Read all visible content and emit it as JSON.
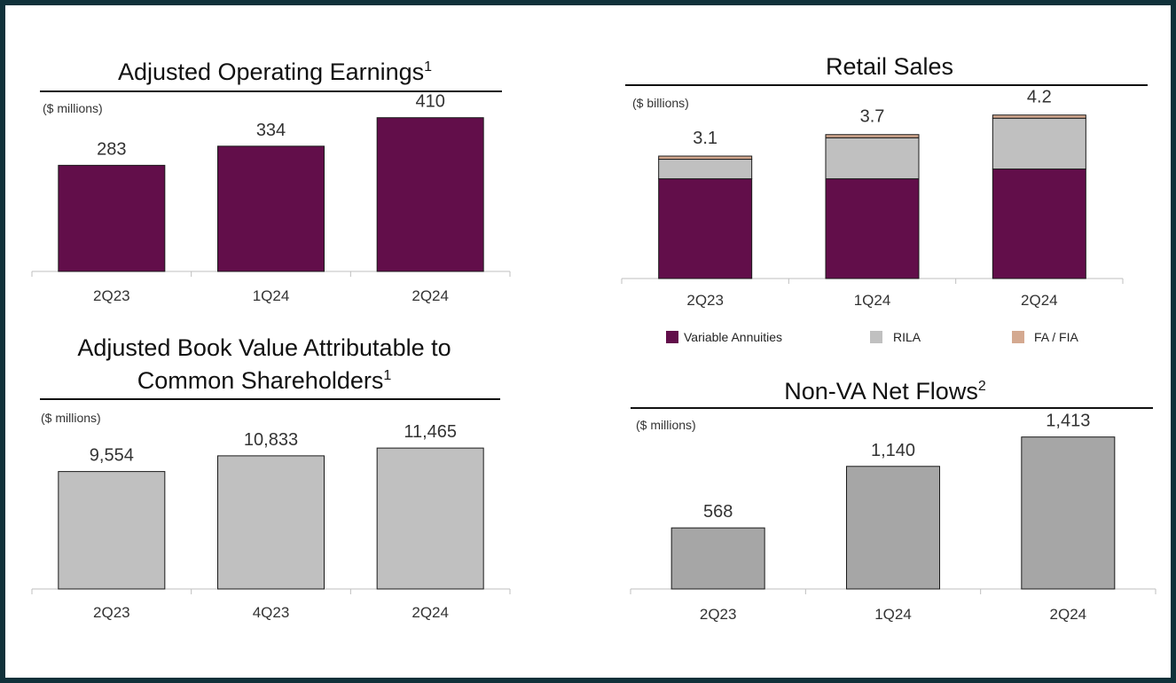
{
  "colors": {
    "frame": "#10313a",
    "maroon": "#620e4a",
    "light_gray": "#c0c0c0",
    "mid_gray": "#a6a6a6",
    "tan": "#d4a990",
    "axis": "#bfbfbf",
    "text": "#333333"
  },
  "chart_data": [
    {
      "id": "adjusted-operating-earnings",
      "type": "bar",
      "title": "Adjusted Operating Earnings",
      "title_sup": "1",
      "unit_label": "($ millions)",
      "categories": [
        "2Q23",
        "1Q24",
        "2Q24"
      ],
      "values": [
        283,
        334,
        410
      ],
      "value_labels": [
        "283",
        "334",
        "410"
      ],
      "ylim": [
        0,
        440
      ],
      "color": "#620e4a",
      "grid": false
    },
    {
      "id": "retail-sales",
      "type": "bar",
      "stacked": true,
      "title": "Retail Sales",
      "unit_label": "($ billions)",
      "categories": [
        "2Q23",
        "1Q24",
        "2Q24"
      ],
      "series": [
        {
          "name": "Variable Annuities",
          "color": "#620e4a",
          "values": [
            2.55,
            2.55,
            2.8
          ]
        },
        {
          "name": "RILA",
          "color": "#c0c0c0",
          "values": [
            0.5,
            1.05,
            1.3
          ]
        },
        {
          "name": "FA / FIA",
          "color": "#d4a990",
          "values": [
            0.08,
            0.08,
            0.08
          ]
        }
      ],
      "totals": [
        "3.1",
        "3.7",
        "4.2"
      ],
      "ylim": [
        0,
        4.4
      ],
      "legend": "bottom",
      "grid": false
    },
    {
      "id": "adjusted-book-value",
      "type": "bar",
      "title_line1": "Adjusted Book Value Attributable to",
      "title_line2": "Common Shareholders",
      "title_sup": "1",
      "unit_label": "($ millions)",
      "categories": [
        "2Q23",
        "4Q23",
        "2Q24"
      ],
      "values": [
        9554,
        10833,
        11465
      ],
      "value_labels": [
        "9,554",
        "10,833",
        "11,465"
      ],
      "ylim": [
        0,
        14000
      ],
      "color": "#c0c0c0",
      "grid": false
    },
    {
      "id": "non-va-net-flows",
      "type": "bar",
      "title": "Non-VA Net Flows",
      "title_sup": "2",
      "unit_label": "($ millions)",
      "categories": [
        "2Q23",
        "1Q24",
        "2Q24"
      ],
      "values": [
        568,
        1140,
        1413
      ],
      "value_labels": [
        "568",
        "1,140",
        "1,413"
      ],
      "ylim": [
        0,
        1600
      ],
      "color": "#a6a6a6",
      "grid": false
    }
  ]
}
